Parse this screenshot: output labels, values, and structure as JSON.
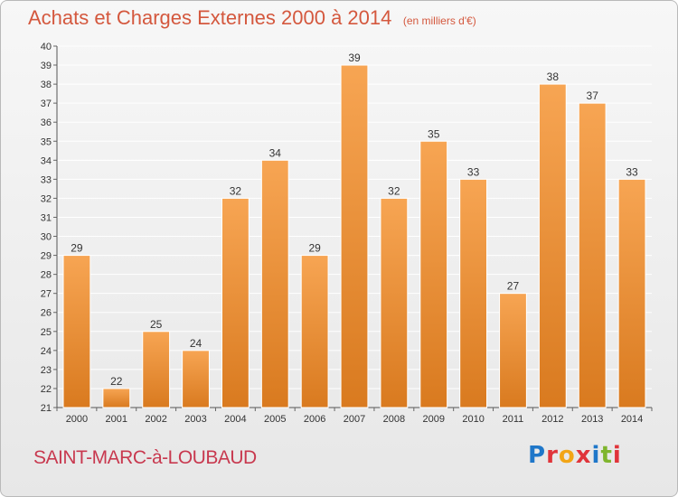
{
  "header": {
    "title": "Achats et Charges Externes 2000 à 2014",
    "subtitle": "(en milliers d'€)"
  },
  "footer": {
    "commune": "SAINT-MARC-à-LOUBAUD",
    "logo": "Proxiti"
  },
  "colors": {
    "bar_top": "#f7a553",
    "bar_bottom": "#d97a1f",
    "title": "#d4583e",
    "commune": "#c8394f",
    "logo_letters": [
      "#1f77c9",
      "#e0343a",
      "#f2a516",
      "#e0343a",
      "#1f77c9",
      "#7fb52d",
      "#e0343a"
    ]
  },
  "chart_data": {
    "type": "bar",
    "title": "Achats et Charges Externes 2000 à 2014",
    "subtitle": "(en milliers d'€)",
    "categories": [
      "2000",
      "2001",
      "2002",
      "2003",
      "2004",
      "2005",
      "2006",
      "2007",
      "2008",
      "2009",
      "2010",
      "2011",
      "2012",
      "2013",
      "2014"
    ],
    "values": [
      29,
      22,
      25,
      24,
      32,
      34,
      29,
      39,
      32,
      35,
      33,
      27,
      38,
      37,
      33
    ],
    "data_labels": [
      "29",
      "22",
      "25",
      "24",
      "32",
      "34",
      "29",
      "39",
      "32",
      "35",
      "33",
      "27",
      "38",
      "37",
      "33"
    ],
    "yticks": [
      "21",
      "22",
      "23",
      "24",
      "25",
      "26",
      "27",
      "28",
      "29",
      "30",
      "31",
      "32",
      "33",
      "34",
      "35",
      "36",
      "37",
      "38",
      "39",
      "40"
    ],
    "ylim": [
      21,
      40
    ],
    "grid": true,
    "xlabel": "",
    "ylabel": ""
  }
}
